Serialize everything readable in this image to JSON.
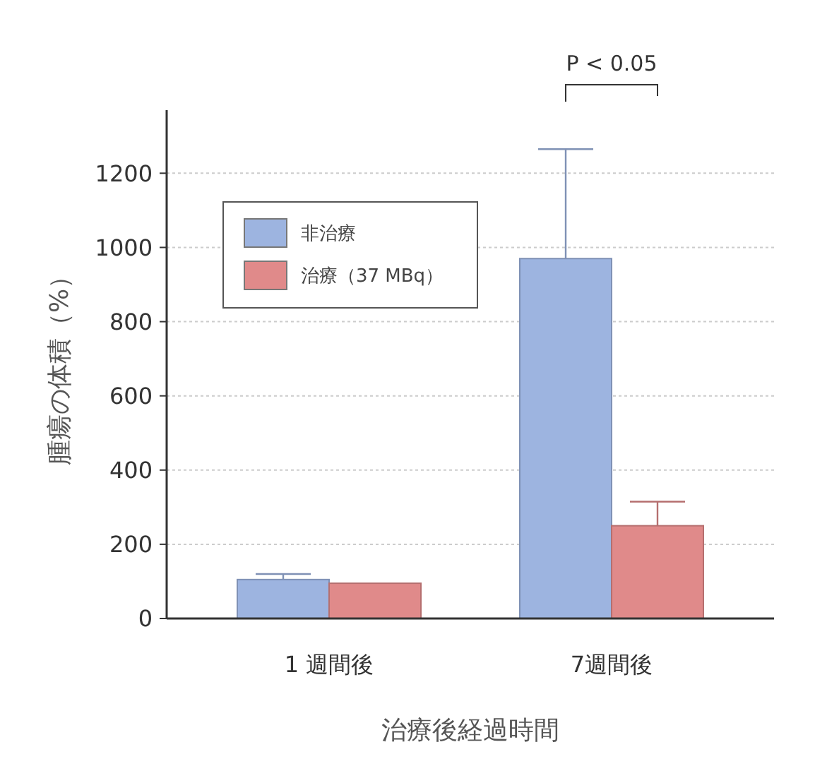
{
  "chart_data": {
    "type": "bar",
    "xlabel": "治療後経過時間",
    "ylabel": "腫瘍の体積（%）",
    "categories": [
      "1 週間後",
      "7週間後"
    ],
    "series": [
      {
        "name": "非治療",
        "color": "#9db4e0",
        "values": [
          105,
          970
        ],
        "errors": [
          [
            105,
            120
          ],
          [
            970,
            1265
          ]
        ]
      },
      {
        "name": "治療（37 MBq）",
        "color": "#e08a8a",
        "values": [
          95,
          250
        ],
        "errors": [
          null,
          [
            250,
            315
          ]
        ]
      }
    ],
    "ylim": [
      0,
      1370
    ],
    "yticks": [
      0,
      200,
      400,
      600,
      800,
      1000,
      1200
    ],
    "grid": "y",
    "legend": "top left",
    "annotations": [
      "P < 0.05"
    ]
  }
}
